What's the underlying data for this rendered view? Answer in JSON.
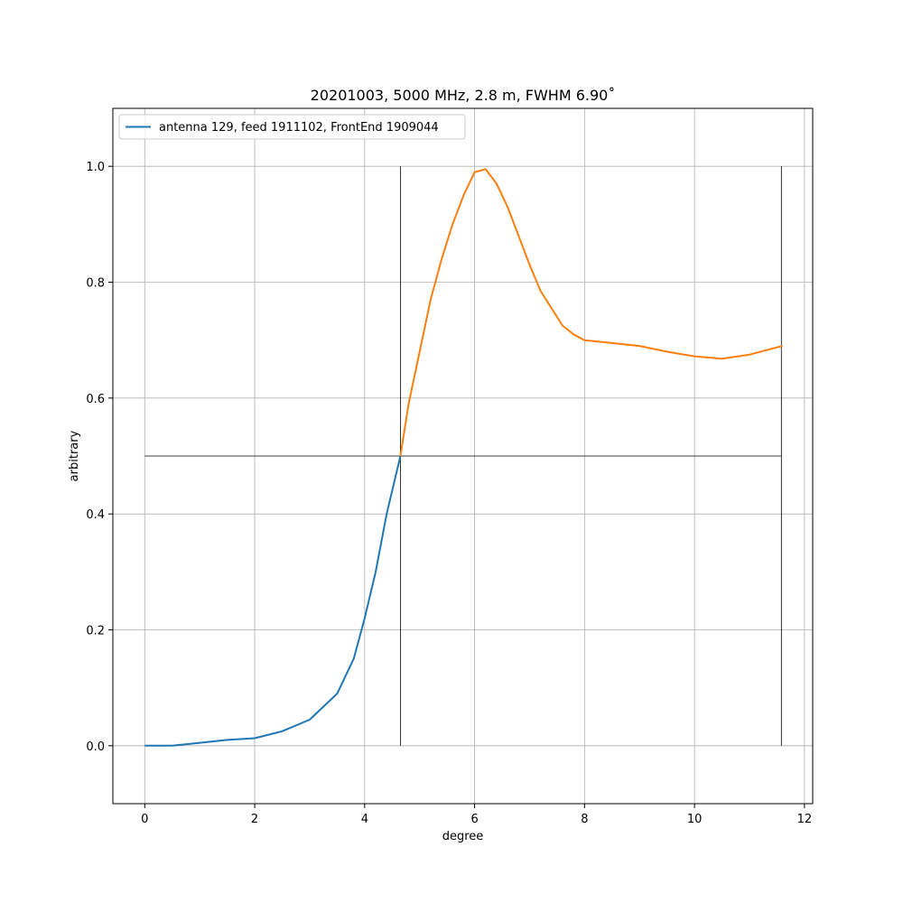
{
  "chart_data": {
    "type": "line",
    "title": "20201003, 5000 MHz, 2.8 m, FWHM 6.90˚",
    "xlabel": "degree",
    "ylabel": "arbitrary",
    "xlim": [
      -0.58,
      12.15
    ],
    "ylim": [
      -0.1,
      1.1
    ],
    "xticks": [
      0,
      2,
      4,
      6,
      8,
      10,
      12
    ],
    "xtick_labels": [
      "0",
      "2",
      "4",
      "6",
      "8",
      "10",
      "12"
    ],
    "yticks": [
      0.0,
      0.2,
      0.4,
      0.6,
      0.8,
      1.0
    ],
    "ytick_labels": [
      "0.0",
      "0.2",
      "0.4",
      "0.6",
      "0.8",
      "1.0"
    ],
    "grid": true,
    "legend_position": "top-left",
    "legend": [
      "antenna 129, feed 1911102, FrontEnd 1909044"
    ],
    "series": [
      {
        "name": "antenna 129, feed 1911102, FrontEnd 1909044",
        "color": "#1f77b4",
        "x": [
          0.0,
          0.5,
          1.0,
          1.5,
          2.0,
          2.5,
          3.0,
          3.5,
          3.8,
          4.0,
          4.2,
          4.4,
          4.65
        ],
        "y": [
          0.0,
          0.0,
          0.005,
          0.01,
          0.013,
          0.025,
          0.045,
          0.09,
          0.15,
          0.22,
          0.3,
          0.4,
          0.5
        ]
      },
      {
        "name": "",
        "color": "#ff7f0e",
        "x": [
          4.65,
          4.8,
          5.0,
          5.2,
          5.4,
          5.6,
          5.8,
          6.0,
          6.2,
          6.4,
          6.6,
          6.8,
          7.0,
          7.2,
          7.4,
          7.6,
          7.8,
          8.0,
          8.5,
          9.0,
          9.5,
          10.0,
          10.5,
          11.0,
          11.6
        ],
        "y": [
          0.5,
          0.59,
          0.68,
          0.77,
          0.84,
          0.9,
          0.95,
          0.99,
          0.995,
          0.97,
          0.93,
          0.88,
          0.83,
          0.785,
          0.755,
          0.725,
          0.71,
          0.7,
          0.695,
          0.69,
          0.68,
          0.672,
          0.668,
          0.675,
          0.69
        ]
      }
    ],
    "guide_lines": {
      "color": "#000000",
      "vertical_x": [
        4.65,
        11.58
      ],
      "vertical_y_range": [
        0.0,
        1.0
      ],
      "horizontal_y": 0.5,
      "horizontal_x_range": [
        0.0,
        11.58
      ]
    }
  }
}
